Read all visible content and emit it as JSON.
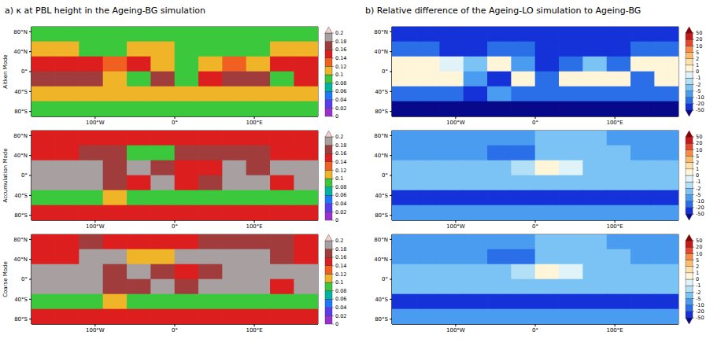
{
  "chart_data": [
    {
      "type": "heatmap",
      "title": "a) κ at PBL height in the Ageing-BG simulation",
      "row_label": "Aitken Mode",
      "x": [
        -165,
        -135,
        -105,
        -75,
        -45,
        -15,
        15,
        45,
        75,
        105,
        135,
        165
      ],
      "y": [
        75,
        45,
        15,
        -15,
        -45,
        -75
      ],
      "values": [
        [
          0.09,
          0.09,
          0.09,
          0.09,
          0.09,
          0.09,
          0.09,
          0.09,
          0.09,
          0.09,
          0.09,
          0.09
        ],
        [
          0.105,
          0.105,
          0.09,
          0.09,
          0.105,
          0.11,
          0.09,
          0.09,
          0.09,
          0.09,
          0.1,
          0.105
        ],
        [
          0.15,
          0.15,
          0.14,
          0.13,
          0.15,
          0.1,
          0.09,
          0.1,
          0.13,
          0.1,
          0.14,
          0.15
        ],
        [
          0.16,
          0.16,
          0.17,
          0.1,
          0.09,
          0.16,
          0.09,
          0.15,
          0.16,
          0.16,
          0.09,
          0.15
        ],
        [
          0.11,
          0.11,
          0.11,
          0.1,
          0.11,
          0.11,
          0.11,
          0.11,
          0.11,
          0.11,
          0.1,
          0.11
        ],
        [
          0.09,
          0.09,
          0.09,
          0.09,
          0.09,
          0.09,
          0.09,
          0.09,
          0.09,
          0.09,
          0.09,
          0.09
        ]
      ],
      "xlim": [
        -180,
        180
      ],
      "xticks": [
        {
          "value": -100,
          "label": "100°W"
        },
        {
          "value": 0,
          "label": "0°"
        },
        {
          "value": 100,
          "label": "100°E"
        }
      ],
      "ylim": [
        -90,
        90
      ],
      "yticks": [
        {
          "value": 80,
          "label": "80°N"
        },
        {
          "value": 40,
          "label": "40°N"
        },
        {
          "value": 0,
          "label": "0°"
        },
        {
          "value": -40,
          "label": "40°S"
        },
        {
          "value": -80,
          "label": "80°S"
        }
      ],
      "colorbar": {
        "range": [
          0,
          0.2
        ],
        "ticks": [
          0,
          0.02,
          0.04,
          0.06,
          0.08,
          0.1,
          0.12,
          0.14,
          0.16,
          0.18,
          0.2
        ],
        "colors": [
          "#9b30d0",
          "#5a3cf0",
          "#1e78ff",
          "#00b4a0",
          "#3cc83c",
          "#f0b428",
          "#f06020",
          "#dc1e1e",
          "#a03c3c",
          "#a8a0a0",
          "#f4cccc"
        ]
      }
    },
    {
      "type": "heatmap",
      "row_label": "Accumulation Mode",
      "x": [
        -165,
        -135,
        -105,
        -75,
        -45,
        -15,
        15,
        45,
        75,
        105,
        135,
        165
      ],
      "y": [
        75,
        45,
        15,
        -15,
        -45,
        -75
      ],
      "values": [
        [
          0.15,
          0.15,
          0.15,
          0.15,
          0.14,
          0.15,
          0.15,
          0.15,
          0.15,
          0.15,
          0.15,
          0.15
        ],
        [
          0.14,
          0.14,
          0.16,
          0.16,
          0.095,
          0.095,
          0.17,
          0.17,
          0.17,
          0.17,
          0.15,
          0.14
        ],
        [
          0.18,
          0.18,
          0.18,
          0.17,
          0.18,
          0.16,
          0.14,
          0.15,
          0.18,
          0.17,
          0.18,
          0.18
        ],
        [
          0.18,
          0.18,
          0.18,
          0.16,
          0.15,
          0.18,
          0.15,
          0.17,
          0.18,
          0.18,
          0.14,
          0.18
        ],
        [
          0.095,
          0.095,
          0.095,
          0.11,
          0.095,
          0.095,
          0.095,
          0.095,
          0.095,
          0.095,
          0.095,
          0.095
        ],
        [
          0.15,
          0.15,
          0.15,
          0.15,
          0.15,
          0.15,
          0.15,
          0.15,
          0.15,
          0.15,
          0.15,
          0.15
        ]
      ],
      "xlim": [
        -180,
        180
      ],
      "xticks": [
        {
          "value": -100,
          "label": "100°W"
        },
        {
          "value": 0,
          "label": "0°"
        },
        {
          "value": 100,
          "label": "100°E"
        }
      ],
      "ylim": [
        -90,
        90
      ],
      "yticks": [
        {
          "value": 80,
          "label": "80°N"
        },
        {
          "value": 40,
          "label": "40°N"
        },
        {
          "value": 0,
          "label": "0°"
        },
        {
          "value": -40,
          "label": "40°S"
        },
        {
          "value": -80,
          "label": "80°S"
        }
      ],
      "colorbar": {
        "range": [
          0,
          0.2
        ],
        "ticks": [
          0,
          0.02,
          0.04,
          0.06,
          0.08,
          0.1,
          0.12,
          0.14,
          0.16,
          0.18,
          0.2
        ],
        "colors": [
          "#9b30d0",
          "#5a3cf0",
          "#1e78ff",
          "#00b4a0",
          "#3cc83c",
          "#f0b428",
          "#f06020",
          "#dc1e1e",
          "#a03c3c",
          "#a8a0a0",
          "#f4cccc"
        ]
      }
    },
    {
      "type": "heatmap",
      "row_label": "Coarse Mode",
      "x": [
        -165,
        -135,
        -105,
        -75,
        -45,
        -15,
        15,
        45,
        75,
        105,
        135,
        165
      ],
      "y": [
        75,
        45,
        15,
        -15,
        -45,
        -75
      ],
      "values": [
        [
          0.15,
          0.15,
          0.16,
          0.15,
          0.15,
          0.15,
          0.15,
          0.16,
          0.16,
          0.16,
          0.16,
          0.15
        ],
        [
          0.14,
          0.14,
          0.19,
          0.18,
          0.11,
          0.11,
          0.19,
          0.19,
          0.19,
          0.19,
          0.16,
          0.14
        ],
        [
          0.18,
          0.18,
          0.18,
          0.17,
          0.18,
          0.17,
          0.15,
          0.16,
          0.18,
          0.19,
          0.18,
          0.18
        ],
        [
          0.18,
          0.18,
          0.18,
          0.17,
          0.16,
          0.18,
          0.16,
          0.18,
          0.18,
          0.18,
          0.15,
          0.18
        ],
        [
          0.095,
          0.095,
          0.095,
          0.11,
          0.095,
          0.095,
          0.095,
          0.095,
          0.095,
          0.095,
          0.095,
          0.095
        ],
        [
          0.15,
          0.15,
          0.15,
          0.15,
          0.15,
          0.15,
          0.15,
          0.15,
          0.15,
          0.15,
          0.15,
          0.15
        ]
      ],
      "xlim": [
        -180,
        180
      ],
      "xticks": [
        {
          "value": -100,
          "label": "100°W"
        },
        {
          "value": 0,
          "label": "0°"
        },
        {
          "value": 100,
          "label": "100°E"
        }
      ],
      "ylim": [
        -90,
        90
      ],
      "yticks": [
        {
          "value": 80,
          "label": "80°N"
        },
        {
          "value": 40,
          "label": "40°N"
        },
        {
          "value": 0,
          "label": "0°"
        },
        {
          "value": -40,
          "label": "40°S"
        },
        {
          "value": -80,
          "label": "80°S"
        }
      ],
      "colorbar": {
        "range": [
          0,
          0.2
        ],
        "ticks": [
          0,
          0.02,
          0.04,
          0.06,
          0.08,
          0.1,
          0.12,
          0.14,
          0.16,
          0.18,
          0.2
        ],
        "colors": [
          "#9b30d0",
          "#5a3cf0",
          "#1e78ff",
          "#00b4a0",
          "#3cc83c",
          "#f0b428",
          "#f06020",
          "#dc1e1e",
          "#a03c3c",
          "#a8a0a0",
          "#f4cccc"
        ]
      }
    },
    {
      "type": "heatmap",
      "title": "b) Relative difference of the Ageing-LO simulation to Ageing-BG",
      "x": [
        -165,
        -135,
        -105,
        -75,
        -45,
        -15,
        15,
        45,
        75,
        105,
        135,
        165
      ],
      "y": [
        75,
        45,
        15,
        -15,
        -45,
        -75
      ],
      "values": [
        [
          -30,
          -30,
          -30,
          -30,
          -30,
          -30,
          -30,
          -30,
          -30,
          -30,
          -30,
          -30
        ],
        [
          -15,
          -15,
          -25,
          -25,
          -15,
          -20,
          -25,
          -25,
          -25,
          -25,
          -20,
          -15
        ],
        [
          0,
          0,
          -0.5,
          -3,
          0,
          -8,
          -25,
          -15,
          -3,
          -12,
          0,
          0
        ],
        [
          0,
          0,
          0,
          -8,
          -25,
          0,
          -20,
          0,
          0,
          0,
          -20,
          0
        ],
        [
          -15,
          -15,
          -15,
          -25,
          -8,
          -12,
          -12,
          -12,
          -12,
          -15,
          -15,
          -15
        ],
        [
          -60,
          -60,
          -60,
          -60,
          -60,
          -60,
          -60,
          -60,
          -60,
          -60,
          -60,
          -60
        ]
      ],
      "xlim": [
        -180,
        180
      ],
      "xticks": [
        {
          "value": -100,
          "label": "100°W"
        },
        {
          "value": 0,
          "label": "0°"
        },
        {
          "value": 100,
          "label": "100°E"
        }
      ],
      "ylim": [
        -90,
        90
      ],
      "yticks": [
        {
          "value": 80,
          "label": "80°N"
        },
        {
          "value": 40,
          "label": "40°N"
        },
        {
          "value": 0,
          "label": "0°"
        },
        {
          "value": -40,
          "label": "40°S"
        },
        {
          "value": -80,
          "label": "80°S"
        }
      ],
      "colorbar": {
        "range": [
          -50,
          50
        ],
        "ticks": [
          -50,
          -20,
          -10,
          -5,
          -2,
          -1,
          0,
          1,
          2,
          5,
          10,
          20,
          50
        ],
        "colors": [
          "#08088a",
          "#1432d8",
          "#2a6ee8",
          "#4a9cf0",
          "#7cc3f5",
          "#b4e0f7",
          "#e0f3f8",
          "#fff5d8",
          "#fee1a8",
          "#fdbb6c",
          "#f88b4a",
          "#e8472e",
          "#c81818",
          "#8b0000"
        ]
      }
    },
    {
      "type": "heatmap",
      "x": [
        -165,
        -135,
        -105,
        -75,
        -45,
        -15,
        15,
        45,
        75,
        105,
        135,
        165
      ],
      "y": [
        75,
        45,
        15,
        -15,
        -45,
        -75
      ],
      "values": [
        [
          -7,
          -7,
          -7,
          -7,
          -7,
          -7,
          -3,
          -3,
          -3,
          -7,
          -7,
          -7
        ],
        [
          -7,
          -7,
          -7,
          -7,
          -15,
          -15,
          -4,
          -4,
          -3,
          -4,
          -7,
          -7
        ],
        [
          -4,
          -4,
          -4,
          -4,
          -4,
          -2,
          0,
          -1,
          -3,
          -4,
          -4,
          -4
        ],
        [
          -4,
          -4,
          -4,
          -3,
          -3,
          -4,
          -3,
          -3,
          -4,
          -4,
          -3,
          -4
        ],
        [
          -30,
          -30,
          -30,
          -30,
          -30,
          -30,
          -30,
          -30,
          -30,
          -30,
          -30,
          -30
        ],
        [
          -7,
          -7,
          -7,
          -7,
          -7,
          -7,
          -7,
          -7,
          -7,
          -7,
          -7,
          -7
        ]
      ],
      "xlim": [
        -180,
        180
      ],
      "xticks": [
        {
          "value": -100,
          "label": "100°W"
        },
        {
          "value": 0,
          "label": "0°"
        },
        {
          "value": 100,
          "label": "100°E"
        }
      ],
      "ylim": [
        -90,
        90
      ],
      "yticks": [
        {
          "value": 80,
          "label": "80°N"
        },
        {
          "value": 40,
          "label": "40°N"
        },
        {
          "value": 0,
          "label": "0°"
        },
        {
          "value": -40,
          "label": "40°S"
        },
        {
          "value": -80,
          "label": "80°S"
        }
      ],
      "colorbar": {
        "range": [
          -50,
          50
        ],
        "ticks": [
          -50,
          -20,
          -10,
          -5,
          -2,
          -1,
          0,
          1,
          2,
          5,
          10,
          20,
          50
        ],
        "colors": [
          "#08088a",
          "#1432d8",
          "#2a6ee8",
          "#4a9cf0",
          "#7cc3f5",
          "#b4e0f7",
          "#e0f3f8",
          "#fff5d8",
          "#fee1a8",
          "#fdbb6c",
          "#f88b4a",
          "#e8472e",
          "#c81818",
          "#8b0000"
        ]
      }
    },
    {
      "type": "heatmap",
      "x": [
        -165,
        -135,
        -105,
        -75,
        -45,
        -15,
        15,
        45,
        75,
        105,
        135,
        165
      ],
      "y": [
        75,
        45,
        15,
        -15,
        -45,
        -75
      ],
      "values": [
        [
          -7,
          -7,
          -7,
          -7,
          -7,
          -7,
          -3,
          -3,
          -3,
          -7,
          -7,
          -7
        ],
        [
          -7,
          -7,
          -7,
          -7,
          -15,
          -15,
          -4,
          -4,
          -3,
          -4,
          -7,
          -7
        ],
        [
          -4,
          -4,
          -4,
          -4,
          -4,
          -2,
          0,
          -1,
          -3,
          -3,
          -4,
          -4
        ],
        [
          -4,
          -4,
          -4,
          -3,
          -3,
          -4,
          -3,
          -3,
          -4,
          -4,
          -3,
          -4
        ],
        [
          -30,
          -30,
          -30,
          -30,
          -30,
          -30,
          -30,
          -30,
          -30,
          -30,
          -30,
          -30
        ],
        [
          -7,
          -7,
          -7,
          -7,
          -7,
          -7,
          -7,
          -7,
          -7,
          -7,
          -7,
          -7
        ]
      ],
      "xlim": [
        -180,
        180
      ],
      "xticks": [
        {
          "value": -100,
          "label": "100°W"
        },
        {
          "value": 0,
          "label": "0°"
        },
        {
          "value": 100,
          "label": "100°E"
        }
      ],
      "ylim": [
        -90,
        90
      ],
      "yticks": [
        {
          "value": 80,
          "label": "80°N"
        },
        {
          "value": 40,
          "label": "40°N"
        },
        {
          "value": 0,
          "label": "0°"
        },
        {
          "value": -40,
          "label": "40°S"
        },
        {
          "value": -80,
          "label": "80°S"
        }
      ],
      "colorbar": {
        "range": [
          -50,
          50
        ],
        "ticks": [
          -50,
          -20,
          -10,
          -5,
          -2,
          -1,
          0,
          1,
          2,
          5,
          10,
          20,
          50
        ],
        "colors": [
          "#08088a",
          "#1432d8",
          "#2a6ee8",
          "#4a9cf0",
          "#7cc3f5",
          "#b4e0f7",
          "#e0f3f8",
          "#fff5d8",
          "#fee1a8",
          "#fdbb6c",
          "#f88b4a",
          "#e8472e",
          "#c81818",
          "#8b0000"
        ]
      }
    }
  ]
}
